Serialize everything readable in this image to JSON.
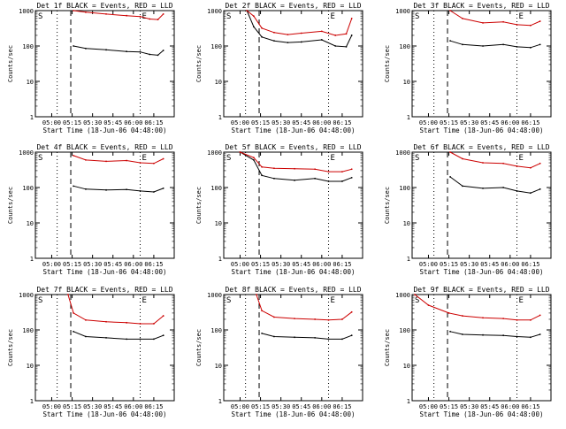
{
  "chart_data": [
    {
      "type": "line",
      "title": "Det 1f BLACK = Events, RED = LLD",
      "xlabel": "Start Time (18-Jun-06 04:48:00)",
      "ylabel": "Counts/sec",
      "yscale": "log",
      "ylim": [
        1,
        1000
      ],
      "x_ticks": [
        "05:00",
        "05:15",
        "05:30",
        "05:45",
        "06:00",
        "06:15"
      ],
      "y_ticks": [
        "1",
        "10",
        "100",
        "1000"
      ],
      "markers": {
        "s": "S",
        "e": "E"
      },
      "colors": {
        "events": "#000000",
        "lld": "#cc0000"
      },
      "series": [
        {
          "name": "Events",
          "values": [
            {
              "x": "05:16",
              "y": 100
            },
            {
              "x": "05:25",
              "y": 85
            },
            {
              "x": "05:40",
              "y": 78
            },
            {
              "x": "05:55",
              "y": 70
            },
            {
              "x": "06:05",
              "y": 68
            },
            {
              "x": "06:12",
              "y": 58
            },
            {
              "x": "06:18",
              "y": 55
            },
            {
              "x": "06:22",
              "y": 75
            }
          ]
        },
        {
          "name": "LLD",
          "values": [
            {
              "x": "05:16",
              "y": 1000
            },
            {
              "x": "05:25",
              "y": 900
            },
            {
              "x": "05:40",
              "y": 800
            },
            {
              "x": "05:55",
              "y": 720
            },
            {
              "x": "06:05",
              "y": 680
            },
            {
              "x": "06:12",
              "y": 580
            },
            {
              "x": "06:18",
              "y": 560
            },
            {
              "x": "06:22",
              "y": 800
            }
          ]
        }
      ]
    },
    {
      "type": "line",
      "title": "Det 2f BLACK = Events, RED = LLD",
      "xlabel": "Start Time (18-Jun-06 04:48:00)",
      "ylabel": "Counts/sec",
      "yscale": "log",
      "ylim": [
        1,
        1000
      ],
      "x_ticks": [
        "05:00",
        "05:15",
        "05:30",
        "05:45",
        "06:00",
        "06:15"
      ],
      "y_ticks": [
        "1",
        "10",
        "100",
        "1000"
      ],
      "markers": {
        "s": "S",
        "e": "E"
      },
      "colors": {
        "events": "#000000",
        "lld": "#cc0000"
      },
      "series": [
        {
          "name": "Events",
          "values": [
            {
              "x": "05:05",
              "y": 1000
            },
            {
              "x": "05:10",
              "y": 350
            },
            {
              "x": "05:16",
              "y": 180
            },
            {
              "x": "05:25",
              "y": 140
            },
            {
              "x": "05:35",
              "y": 125
            },
            {
              "x": "05:45",
              "y": 130
            },
            {
              "x": "06:00",
              "y": 150
            },
            {
              "x": "06:10",
              "y": 100
            },
            {
              "x": "06:18",
              "y": 95
            },
            {
              "x": "06:22",
              "y": 200
            }
          ]
        },
        {
          "name": "LLD",
          "values": [
            {
              "x": "05:05",
              "y": 1000
            },
            {
              "x": "05:10",
              "y": 700
            },
            {
              "x": "05:16",
              "y": 320
            },
            {
              "x": "05:25",
              "y": 240
            },
            {
              "x": "05:35",
              "y": 210
            },
            {
              "x": "05:45",
              "y": 230
            },
            {
              "x": "06:00",
              "y": 260
            },
            {
              "x": "06:10",
              "y": 200
            },
            {
              "x": "06:18",
              "y": 220
            },
            {
              "x": "06:22",
              "y": 600
            }
          ]
        }
      ]
    },
    {
      "type": "line",
      "title": "Det 3f BLACK = Events, RED = LLD",
      "xlabel": "Start Time (18-Jun-06 04:48:00)",
      "ylabel": "Counts/sec",
      "yscale": "log",
      "ylim": [
        1,
        1000
      ],
      "x_ticks": [
        "05:00",
        "05:15",
        "05:30",
        "05:45",
        "06:00",
        "06:15"
      ],
      "y_ticks": [
        "1",
        "10",
        "100",
        "1000"
      ],
      "markers": {
        "s": "S",
        "e": "E"
      },
      "colors": {
        "events": "#000000",
        "lld": "#cc0000"
      },
      "series": [
        {
          "name": "Events",
          "values": [
            {
              "x": "05:16",
              "y": 140
            },
            {
              "x": "05:25",
              "y": 110
            },
            {
              "x": "05:40",
              "y": 100
            },
            {
              "x": "05:55",
              "y": 110
            },
            {
              "x": "06:05",
              "y": 95
            },
            {
              "x": "06:15",
              "y": 90
            },
            {
              "x": "06:22",
              "y": 110
            }
          ]
        },
        {
          "name": "LLD",
          "values": [
            {
              "x": "05:16",
              "y": 1000
            },
            {
              "x": "05:25",
              "y": 600
            },
            {
              "x": "05:40",
              "y": 450
            },
            {
              "x": "05:55",
              "y": 480
            },
            {
              "x": "06:05",
              "y": 400
            },
            {
              "x": "06:15",
              "y": 380
            },
            {
              "x": "06:22",
              "y": 500
            }
          ]
        }
      ]
    },
    {
      "type": "line",
      "title": "Det 4f BLACK = Events, RED = LLD",
      "xlabel": "Start Time (18-Jun-06 04:48:00)",
      "ylabel": "Counts/sec",
      "yscale": "log",
      "ylim": [
        1,
        1000
      ],
      "x_ticks": [
        "05:00",
        "05:15",
        "05:30",
        "05:45",
        "06:00",
        "06:15"
      ],
      "y_ticks": [
        "1",
        "10",
        "100",
        "1000"
      ],
      "markers": {
        "s": "S",
        "e": "E"
      },
      "colors": {
        "events": "#000000",
        "lld": "#cc0000"
      },
      "series": [
        {
          "name": "Events",
          "values": [
            {
              "x": "05:16",
              "y": 110
            },
            {
              "x": "05:25",
              "y": 90
            },
            {
              "x": "05:40",
              "y": 85
            },
            {
              "x": "05:55",
              "y": 88
            },
            {
              "x": "06:05",
              "y": 80
            },
            {
              "x": "06:15",
              "y": 75
            },
            {
              "x": "06:22",
              "y": 95
            }
          ]
        },
        {
          "name": "LLD",
          "values": [
            {
              "x": "05:16",
              "y": 800
            },
            {
              "x": "05:25",
              "y": 600
            },
            {
              "x": "05:40",
              "y": 550
            },
            {
              "x": "05:55",
              "y": 580
            },
            {
              "x": "06:05",
              "y": 500
            },
            {
              "x": "06:15",
              "y": 480
            },
            {
              "x": "06:22",
              "y": 650
            }
          ]
        }
      ]
    },
    {
      "type": "line",
      "title": "Det 5f BLACK = Events, RED = LLD",
      "xlabel": "Start Time (18-Jun-06 04:48:00)",
      "ylabel": "Counts/sec",
      "yscale": "log",
      "ylim": [
        1,
        1000
      ],
      "x_ticks": [
        "05:00",
        "05:15",
        "05:30",
        "05:45",
        "06:00",
        "06:15"
      ],
      "y_ticks": [
        "1",
        "10",
        "100",
        "1000"
      ],
      "markers": {
        "s": "S",
        "e": "E"
      },
      "colors": {
        "events": "#000000",
        "lld": "#cc0000"
      },
      "series": [
        {
          "name": "Events",
          "values": [
            {
              "x": "05:00",
              "y": 1000
            },
            {
              "x": "05:10",
              "y": 600
            },
            {
              "x": "05:16",
              "y": 220
            },
            {
              "x": "05:25",
              "y": 180
            },
            {
              "x": "05:40",
              "y": 160
            },
            {
              "x": "05:55",
              "y": 180
            },
            {
              "x": "06:05",
              "y": 150
            },
            {
              "x": "06:15",
              "y": 150
            },
            {
              "x": "06:22",
              "y": 190
            }
          ]
        },
        {
          "name": "LLD",
          "values": [
            {
              "x": "05:00",
              "y": 1000
            },
            {
              "x": "05:10",
              "y": 700
            },
            {
              "x": "05:16",
              "y": 380
            },
            {
              "x": "05:25",
              "y": 350
            },
            {
              "x": "05:40",
              "y": 340
            },
            {
              "x": "05:55",
              "y": 330
            },
            {
              "x": "06:05",
              "y": 280
            },
            {
              "x": "06:15",
              "y": 280
            },
            {
              "x": "06:22",
              "y": 330
            }
          ]
        }
      ]
    },
    {
      "type": "line",
      "title": "Det 6f BLACK = Events, RED = LLD",
      "xlabel": "Start Time (18-Jun-06 04:48:00)",
      "ylabel": "Counts/sec",
      "yscale": "log",
      "ylim": [
        1,
        1000
      ],
      "x_ticks": [
        "05:00",
        "05:15",
        "05:30",
        "05:45",
        "06:00",
        "06:15"
      ],
      "y_ticks": [
        "1",
        "10",
        "100",
        "1000"
      ],
      "markers": {
        "s": "S",
        "e": "E"
      },
      "colors": {
        "events": "#000000",
        "lld": "#cc0000"
      },
      "series": [
        {
          "name": "Events",
          "values": [
            {
              "x": "05:16",
              "y": 200
            },
            {
              "x": "05:25",
              "y": 110
            },
            {
              "x": "05:40",
              "y": 95
            },
            {
              "x": "05:55",
              "y": 100
            },
            {
              "x": "06:05",
              "y": 80
            },
            {
              "x": "06:15",
              "y": 70
            },
            {
              "x": "06:22",
              "y": 90
            }
          ]
        },
        {
          "name": "LLD",
          "values": [
            {
              "x": "05:16",
              "y": 1000
            },
            {
              "x": "05:25",
              "y": 650
            },
            {
              "x": "05:40",
              "y": 500
            },
            {
              "x": "05:55",
              "y": 480
            },
            {
              "x": "06:05",
              "y": 400
            },
            {
              "x": "06:15",
              "y": 360
            },
            {
              "x": "06:22",
              "y": 480
            }
          ]
        }
      ]
    },
    {
      "type": "line",
      "title": "Det 7f BLACK = Events, RED = LLD",
      "xlabel": "Start Time (18-Jun-06 04:48:00)",
      "ylabel": "Counts/sec",
      "yscale": "log",
      "ylim": [
        1,
        1000
      ],
      "x_ticks": [
        "05:00",
        "05:15",
        "05:30",
        "05:45",
        "06:00",
        "06:15"
      ],
      "y_ticks": [
        "1",
        "10",
        "100",
        "1000"
      ],
      "markers": {
        "s": "S",
        "e": "E"
      },
      "colors": {
        "events": "#000000",
        "lld": "#cc0000"
      },
      "series": [
        {
          "name": "Events",
          "values": [
            {
              "x": "05:16",
              "y": 90
            },
            {
              "x": "05:25",
              "y": 65
            },
            {
              "x": "05:40",
              "y": 60
            },
            {
              "x": "05:55",
              "y": 55
            },
            {
              "x": "06:05",
              "y": 55
            },
            {
              "x": "06:15",
              "y": 55
            },
            {
              "x": "06:22",
              "y": 70
            }
          ]
        },
        {
          "name": "LLD",
          "values": [
            {
              "x": "05:12",
              "y": 1000
            },
            {
              "x": "05:16",
              "y": 300
            },
            {
              "x": "05:25",
              "y": 190
            },
            {
              "x": "05:40",
              "y": 170
            },
            {
              "x": "05:55",
              "y": 160
            },
            {
              "x": "06:05",
              "y": 150
            },
            {
              "x": "06:15",
              "y": 150
            },
            {
              "x": "06:22",
              "y": 250
            }
          ]
        }
      ]
    },
    {
      "type": "line",
      "title": "Det 8f BLACK = Events, RED = LLD",
      "xlabel": "Start Time (18-Jun-06 04:48:00)",
      "ylabel": "Counts/sec",
      "yscale": "log",
      "ylim": [
        1,
        1000
      ],
      "x_ticks": [
        "05:00",
        "05:15",
        "05:30",
        "05:45",
        "06:00",
        "06:15"
      ],
      "y_ticks": [
        "1",
        "10",
        "100",
        "1000"
      ],
      "markers": {
        "s": "S",
        "e": "E"
      },
      "colors": {
        "events": "#000000",
        "lld": "#cc0000"
      },
      "series": [
        {
          "name": "Events",
          "values": [
            {
              "x": "05:16",
              "y": 80
            },
            {
              "x": "05:25",
              "y": 65
            },
            {
              "x": "05:40",
              "y": 62
            },
            {
              "x": "05:55",
              "y": 60
            },
            {
              "x": "06:05",
              "y": 55
            },
            {
              "x": "06:15",
              "y": 55
            },
            {
              "x": "06:22",
              "y": 70
            }
          ]
        },
        {
          "name": "LLD",
          "values": [
            {
              "x": "05:12",
              "y": 1000
            },
            {
              "x": "05:16",
              "y": 350
            },
            {
              "x": "05:25",
              "y": 230
            },
            {
              "x": "05:40",
              "y": 210
            },
            {
              "x": "05:55",
              "y": 200
            },
            {
              "x": "06:05",
              "y": 190
            },
            {
              "x": "06:15",
              "y": 200
            },
            {
              "x": "06:22",
              "y": 320
            }
          ]
        }
      ]
    },
    {
      "type": "line",
      "title": "Det 9f BLACK = Events, RED = LLD",
      "xlabel": "Start Time (18-Jun-06 04:48:00)",
      "ylabel": "Counts/sec",
      "yscale": "log",
      "ylim": [
        1,
        1000
      ],
      "x_ticks": [
        "05:00",
        "05:15",
        "05:30",
        "05:45",
        "06:00",
        "06:15"
      ],
      "y_ticks": [
        "1",
        "10",
        "100",
        "1000"
      ],
      "markers": {
        "s": "S",
        "e": "E"
      },
      "colors": {
        "events": "#000000",
        "lld": "#cc0000"
      },
      "series": [
        {
          "name": "Events",
          "values": [
            {
              "x": "05:16",
              "y": 90
            },
            {
              "x": "05:25",
              "y": 75
            },
            {
              "x": "05:40",
              "y": 72
            },
            {
              "x": "05:55",
              "y": 70
            },
            {
              "x": "06:05",
              "y": 65
            },
            {
              "x": "06:15",
              "y": 62
            },
            {
              "x": "06:22",
              "y": 75
            }
          ]
        },
        {
          "name": "LLD",
          "values": [
            {
              "x": "04:50",
              "y": 1000
            },
            {
              "x": "05:00",
              "y": 500
            },
            {
              "x": "05:15",
              "y": 300
            },
            {
              "x": "05:25",
              "y": 250
            },
            {
              "x": "05:40",
              "y": 220
            },
            {
              "x": "05:55",
              "y": 210
            },
            {
              "x": "06:05",
              "y": 190
            },
            {
              "x": "06:15",
              "y": 190
            },
            {
              "x": "06:22",
              "y": 260
            }
          ]
        }
      ]
    }
  ]
}
